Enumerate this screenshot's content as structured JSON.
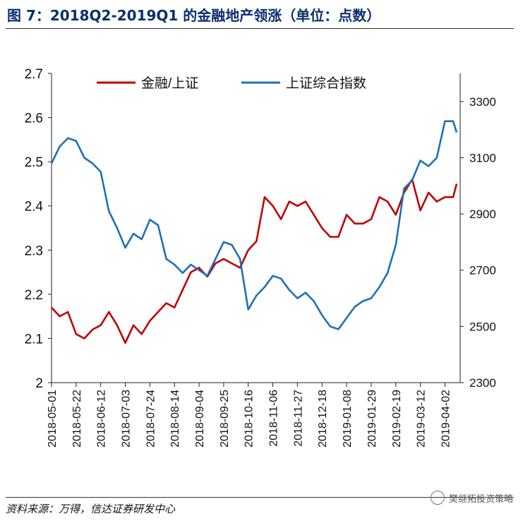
{
  "header": {
    "title": "图 7：2018Q2-2019Q1 的金融地产领涨（单位：点数）"
  },
  "footer": {
    "source": "资料来源：万得，信达证券研发中心",
    "watermark": "樊继拓投资策略"
  },
  "chart_data": {
    "type": "line",
    "title": "图 7：2018Q2-2019Q1 的金融地产领涨（单位：点数）",
    "x_tick_labels": [
      "2018-05-01",
      "2018-05-22",
      "2018-06-12",
      "2018-07-03",
      "2018-07-24",
      "2018-08-14",
      "2018-09-04",
      "2018-09-25",
      "2018-10-16",
      "2018-11-06",
      "2018-11-27",
      "2018-12-18",
      "2019-01-08",
      "2019-01-29",
      "2019-02-19",
      "2019-03-12",
      "2019-04-02"
    ],
    "left_axis": {
      "ylim": [
        2.0,
        2.7
      ],
      "ticks": [
        "2",
        "2.1",
        "2.2",
        "2.3",
        "2.4",
        "2.5",
        "2.6",
        "2.7"
      ]
    },
    "right_axis": {
      "ylim": [
        2300,
        3400
      ],
      "ticks": [
        "2300",
        "2500",
        "2700",
        "2900",
        "3100",
        "3300"
      ]
    },
    "legend": {
      "position": "top"
    },
    "series": [
      {
        "name": "金融/上证",
        "axis": "left",
        "color": "#c00000",
        "x": [
          "2018-05-01",
          "2018-05-08",
          "2018-05-15",
          "2018-05-22",
          "2018-05-29",
          "2018-06-05",
          "2018-06-12",
          "2018-06-19",
          "2018-06-26",
          "2018-07-03",
          "2018-07-10",
          "2018-07-17",
          "2018-07-24",
          "2018-07-31",
          "2018-08-07",
          "2018-08-14",
          "2018-08-21",
          "2018-08-28",
          "2018-09-04",
          "2018-09-11",
          "2018-09-18",
          "2018-09-25",
          "2018-10-02",
          "2018-10-09",
          "2018-10-16",
          "2018-10-23",
          "2018-10-30",
          "2018-11-06",
          "2018-11-13",
          "2018-11-20",
          "2018-11-27",
          "2018-12-04",
          "2018-12-11",
          "2018-12-18",
          "2018-12-25",
          "2019-01-01",
          "2019-01-08",
          "2019-01-15",
          "2019-01-22",
          "2019-01-29",
          "2019-02-05",
          "2019-02-12",
          "2019-02-19",
          "2019-02-26",
          "2019-03-05",
          "2019-03-12",
          "2019-03-19",
          "2019-03-26",
          "2019-04-02",
          "2019-04-09",
          "2019-04-12"
        ],
        "values": [
          2.17,
          2.15,
          2.16,
          2.11,
          2.1,
          2.12,
          2.13,
          2.16,
          2.13,
          2.09,
          2.13,
          2.11,
          2.14,
          2.16,
          2.18,
          2.17,
          2.21,
          2.25,
          2.26,
          2.24,
          2.27,
          2.28,
          2.27,
          2.26,
          2.3,
          2.32,
          2.42,
          2.4,
          2.37,
          2.41,
          2.4,
          2.41,
          2.38,
          2.35,
          2.33,
          2.33,
          2.38,
          2.36,
          2.36,
          2.37,
          2.42,
          2.41,
          2.38,
          2.43,
          2.46,
          2.39,
          2.43,
          2.41,
          2.42,
          2.42,
          2.45
        ]
      },
      {
        "name": "上证综合指数",
        "axis": "right",
        "color": "#1f6fb8",
        "x": [
          "2018-05-01",
          "2018-05-08",
          "2018-05-15",
          "2018-05-22",
          "2018-05-29",
          "2018-06-05",
          "2018-06-12",
          "2018-06-19",
          "2018-06-26",
          "2018-07-03",
          "2018-07-10",
          "2018-07-17",
          "2018-07-24",
          "2018-07-31",
          "2018-08-07",
          "2018-08-14",
          "2018-08-21",
          "2018-08-28",
          "2018-09-04",
          "2018-09-11",
          "2018-09-18",
          "2018-09-25",
          "2018-10-02",
          "2018-10-09",
          "2018-10-16",
          "2018-10-23",
          "2018-10-30",
          "2018-11-06",
          "2018-11-13",
          "2018-11-20",
          "2018-11-27",
          "2018-12-04",
          "2018-12-11",
          "2018-12-18",
          "2018-12-25",
          "2019-01-01",
          "2019-01-08",
          "2019-01-15",
          "2019-01-22",
          "2019-01-29",
          "2019-02-05",
          "2019-02-12",
          "2019-02-19",
          "2019-02-26",
          "2019-03-05",
          "2019-03-12",
          "2019-03-19",
          "2019-03-26",
          "2019-04-02",
          "2019-04-09",
          "2019-04-12"
        ],
        "values": [
          3080,
          3140,
          3170,
          3160,
          3100,
          3080,
          3050,
          2910,
          2850,
          2780,
          2830,
          2810,
          2880,
          2860,
          2740,
          2720,
          2690,
          2720,
          2700,
          2680,
          2740,
          2800,
          2790,
          2740,
          2560,
          2610,
          2640,
          2680,
          2670,
          2630,
          2600,
          2620,
          2590,
          2540,
          2500,
          2490,
          2530,
          2570,
          2590,
          2600,
          2640,
          2690,
          2790,
          2990,
          3020,
          3090,
          3070,
          3100,
          3230,
          3230,
          3190
        ]
      }
    ]
  }
}
